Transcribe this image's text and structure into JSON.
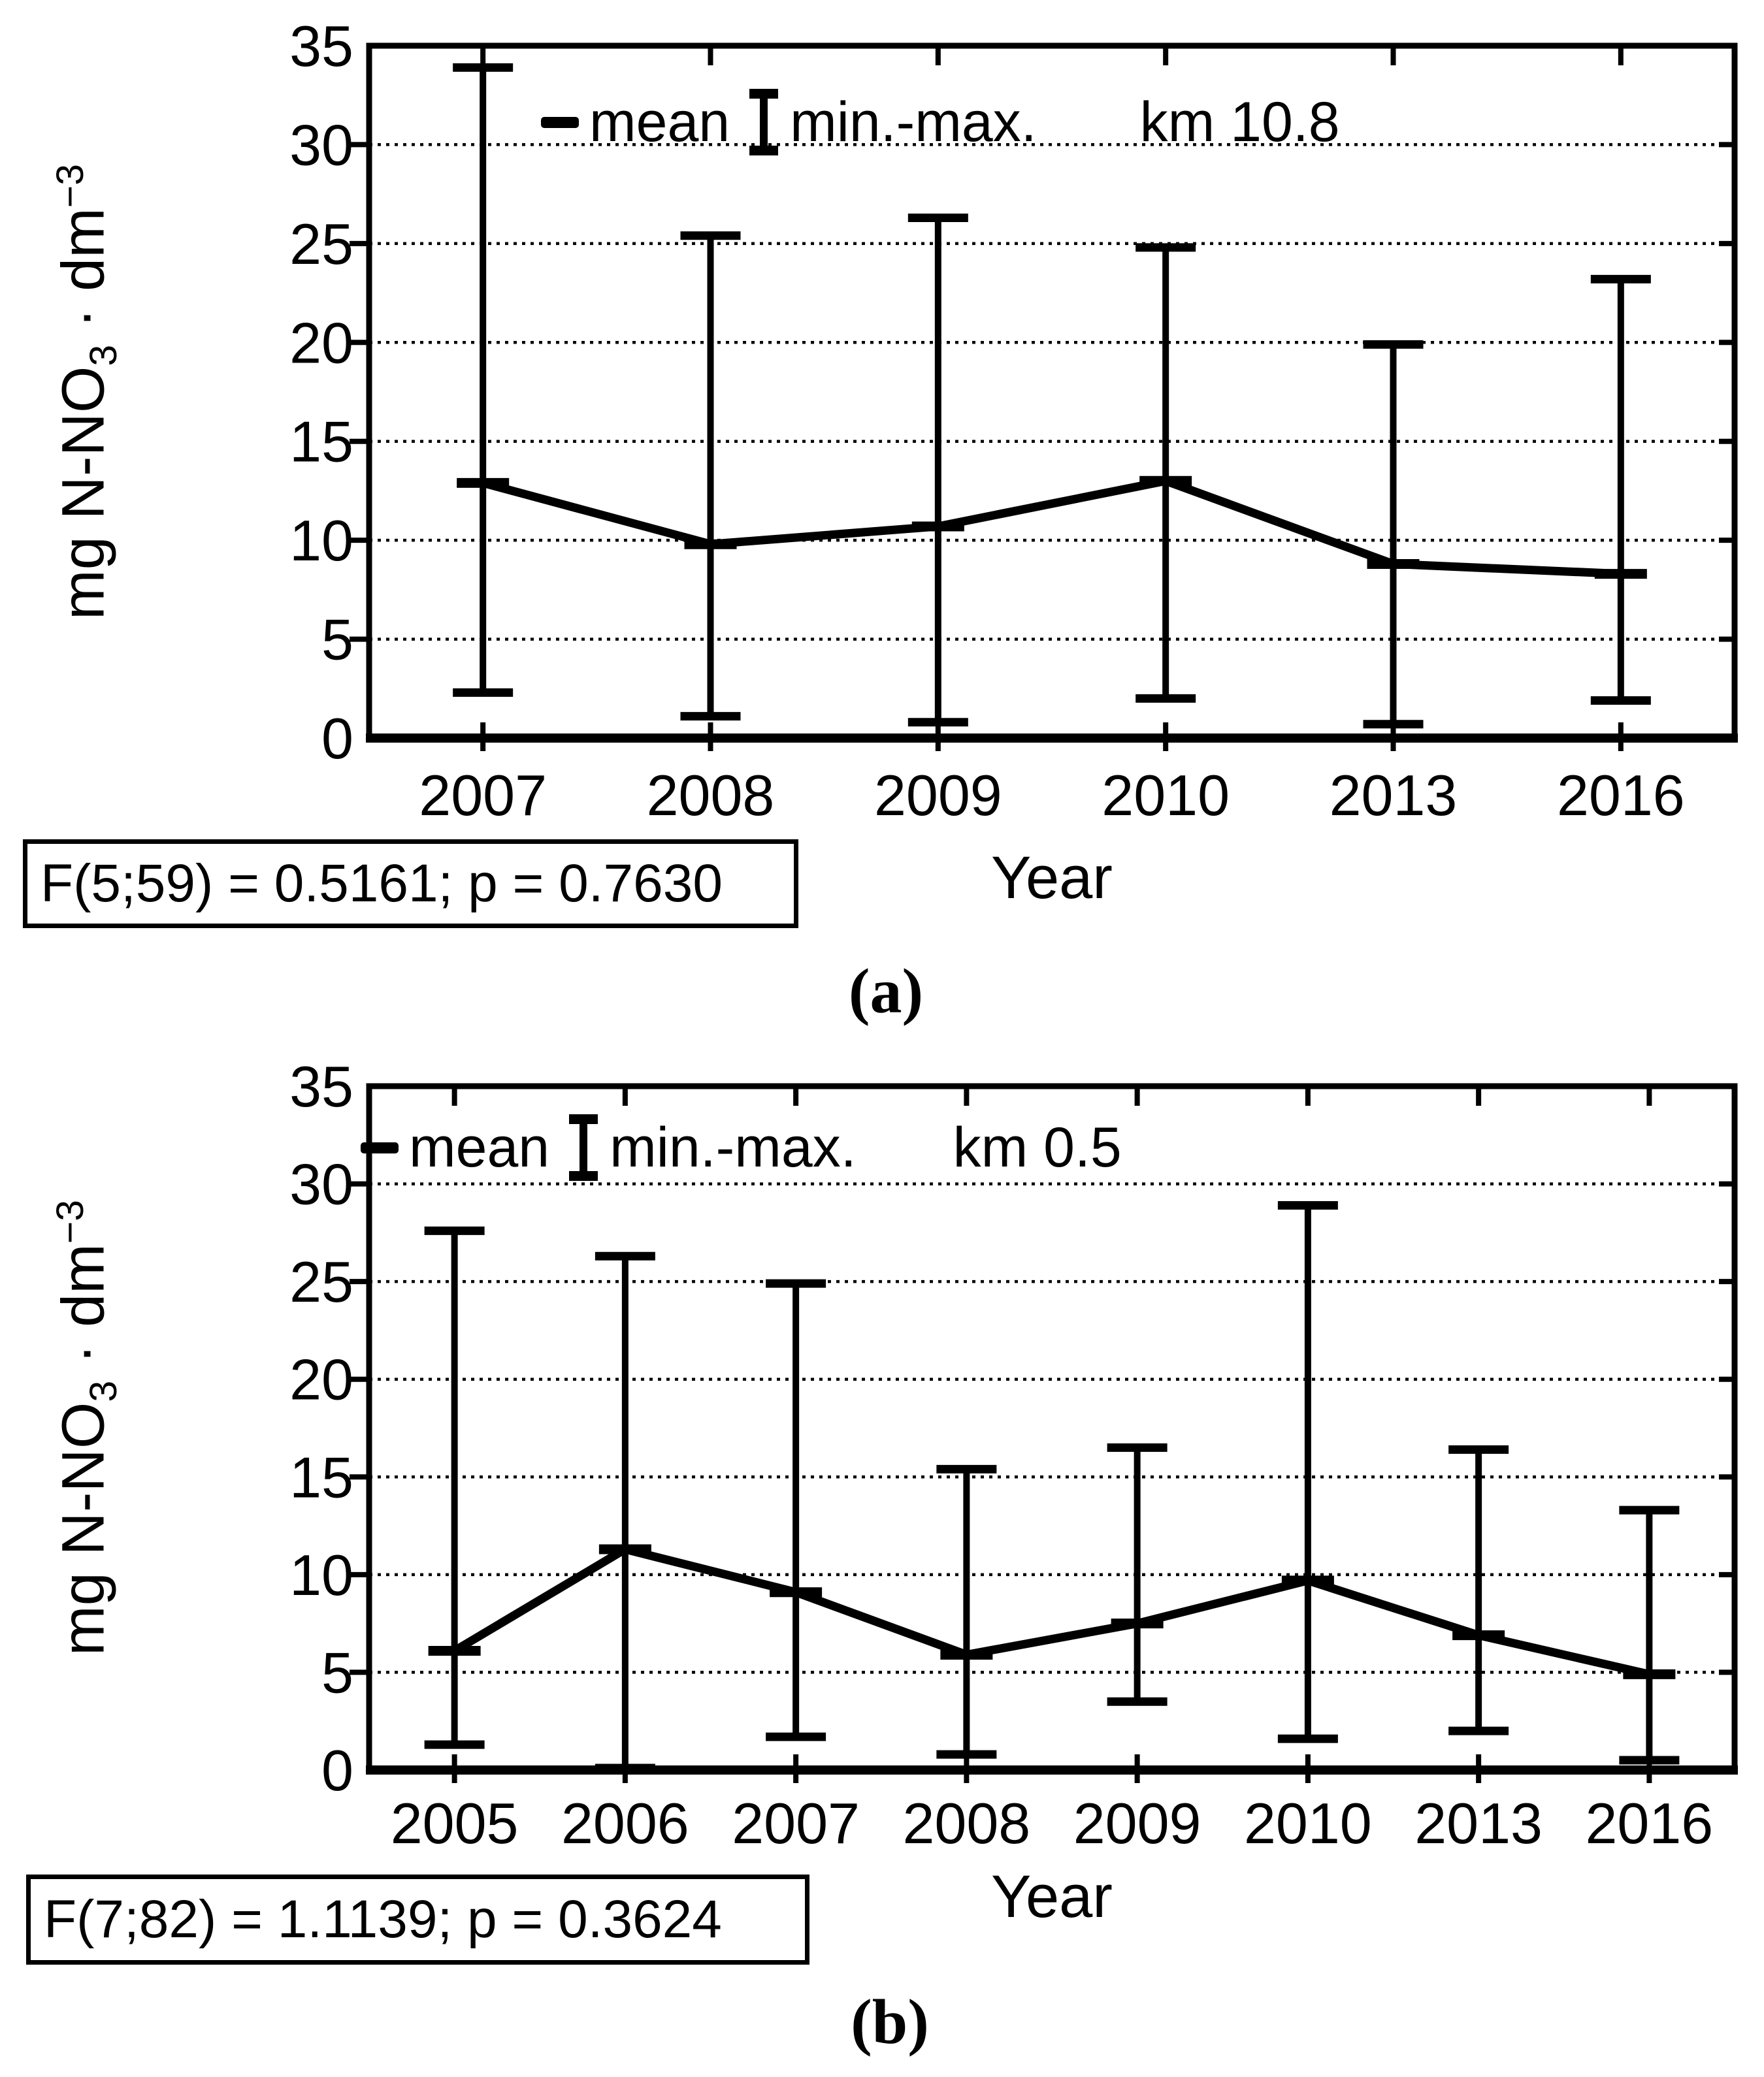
{
  "page": {
    "background": "#ffffff",
    "text_color": "#000000"
  },
  "panels": [
    {
      "panel_label": "(a)",
      "station_label": "km 10.8",
      "legend": {
        "mean_label": "mean",
        "minmax_label": "min.-max."
      },
      "stats_text": "F(5;59) = 0.5161; p = 0.7630",
      "xlabel": "Year",
      "ylabel": {
        "prefix": "mg N-NO",
        "sub": "3",
        "mid": " · dm",
        "sup": "−3"
      }
    },
    {
      "panel_label": "(b)",
      "station_label": "km 0.5",
      "legend": {
        "mean_label": "mean",
        "minmax_label": "min.-max."
      },
      "stats_text": "F(7;82) = 1.1139; p = 0.3624",
      "xlabel": "Year",
      "ylabel": {
        "prefix": "mg N-NO",
        "sub": "3",
        "mid": " · dm",
        "sup": "−3"
      }
    }
  ],
  "chart_data": [
    {
      "type": "line",
      "subtype": "mean-with-min-max-errorbars",
      "title": "km 10.8",
      "categories": [
        "2007",
        "2008",
        "2009",
        "2010",
        "2013",
        "2016"
      ],
      "series": [
        {
          "name": "mean",
          "values": [
            12.9,
            9.8,
            10.7,
            13.0,
            8.8,
            8.3
          ]
        },
        {
          "name": "min",
          "values": [
            2.3,
            1.1,
            0.8,
            2.0,
            0.7,
            1.9
          ]
        },
        {
          "name": "max",
          "values": [
            33.9,
            25.4,
            26.3,
            24.8,
            19.9,
            23.2
          ]
        }
      ],
      "xlabel": "Year",
      "ylabel": "mg N-NO3 · dm−3",
      "ylim": [
        0,
        35
      ],
      "yticks": [
        0,
        5,
        10,
        15,
        20,
        25,
        30,
        35
      ],
      "grid": "horizontal-dotted",
      "legend_position": "top-inside",
      "annotation": "F(5;59) = 0.5161; p = 0.7630"
    },
    {
      "type": "line",
      "subtype": "mean-with-min-max-errorbars",
      "title": "km 0.5",
      "categories": [
        "2005",
        "2006",
        "2007",
        "2008",
        "2009",
        "2010",
        "2013",
        "2016"
      ],
      "series": [
        {
          "name": "mean",
          "values": [
            6.1,
            11.3,
            9.1,
            5.9,
            7.5,
            9.7,
            6.9,
            4.9
          ]
        },
        {
          "name": "min",
          "values": [
            1.3,
            0.1,
            1.7,
            0.8,
            3.5,
            1.6,
            2.0,
            0.5
          ]
        },
        {
          "name": "max",
          "values": [
            27.6,
            26.3,
            24.9,
            15.4,
            16.5,
            28.9,
            16.4,
            13.3
          ]
        }
      ],
      "xlabel": "Year",
      "ylabel": "mg N-NO3 · dm−3",
      "ylim": [
        0,
        35
      ],
      "yticks": [
        0,
        5,
        10,
        15,
        20,
        25,
        30,
        35
      ],
      "grid": "horizontal-dotted",
      "legend_position": "top-inside",
      "annotation": "F(7;82) = 1.1139; p = 0.3624"
    }
  ]
}
